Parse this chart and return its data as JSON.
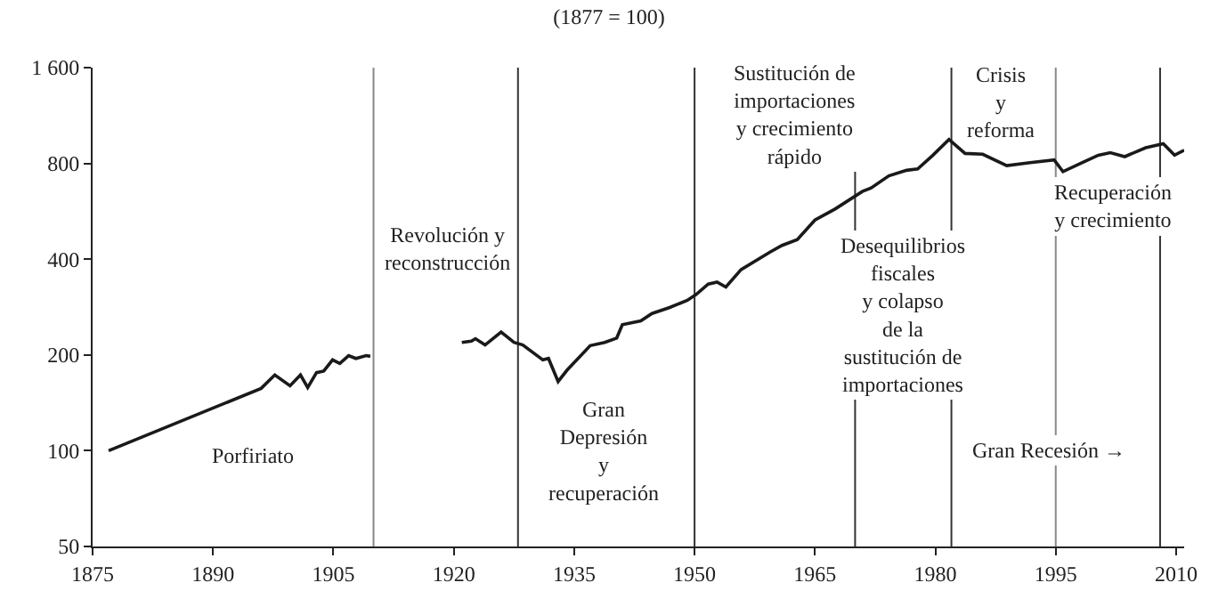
{
  "chart_data": {
    "type": "line",
    "title": "(1877 = 100)",
    "log": true,
    "grid": false,
    "marker": "none",
    "line_style": "solid",
    "xlim": [
      1875,
      2011
    ],
    "xticks": [
      1875,
      1890,
      1905,
      1920,
      1935,
      1950,
      1965,
      1980,
      1995,
      2010
    ],
    "ylim": [
      50,
      1600
    ],
    "yticks": [
      50,
      100,
      200,
      400,
      800,
      {
        "value": 1600,
        "label": "1 600"
      }
    ],
    "series": [
      {
        "color": "#1a1a1a",
        "x": [
          1877,
          1896,
          1897.7,
          1899.6,
          1900.9,
          1901.8,
          1902.9,
          1903.8,
          1904.9,
          1905.8,
          1906.9,
          1907.8,
          1909.1,
          1909.6,
          1915,
          1921,
          1922.2,
          1922.7,
          1923.9,
          1925.9,
          1927.5,
          1928.6,
          1931.1,
          1931.8,
          1933,
          1934.1,
          1937,
          1938.8,
          1940.3,
          1941,
          1943.3,
          1944.7,
          1946.9,
          1949.1,
          1950.2,
          1951.7,
          1952.8,
          1953.9,
          1955.8,
          1959.4,
          1960.9,
          1962.8,
          1965,
          1967.5,
          1970.9,
          1972,
          1974.2,
          1976.4,
          1977.8,
          1979.7,
          1981.7,
          1983.7,
          1985.9,
          1988.9,
          1991.8,
          1994.8,
          1995.9,
          1998.5,
          2000.3,
          2001.8,
          2003.6,
          2006.2,
          2008.4,
          2009.8,
          2011
        ],
        "values": [
          100,
          157,
          173,
          160,
          173,
          158,
          176,
          178,
          193,
          188,
          199,
          195,
          199,
          198,
          null,
          219,
          221,
          225,
          215,
          236,
          219,
          215,
          193,
          195,
          165,
          179,
          214,
          219,
          226,
          249,
          256,
          270,
          282,
          297,
          310,
          334,
          339,
          327,
          371,
          421,
          442,
          461,
          531,
          575,
          653,
          670,
          731,
          761,
          769,
          849,
          951,
          860,
          855,
          787,
          804,
          820,
          754,
          809,
          849,
          865,
          840,
          896,
          922,
          849,
          880
        ]
      }
    ],
    "ref_lines": [
      {
        "axis": "x",
        "value": 1910,
        "color": "#888888"
      },
      {
        "axis": "x",
        "value": 1928,
        "color": "#333333"
      },
      {
        "axis": "x",
        "value": 1950,
        "color": "#333333"
      },
      {
        "axis": "x",
        "value": 1970,
        "color": "#333333"
      },
      {
        "axis": "x",
        "value": 1982,
        "color": "#333333"
      },
      {
        "axis": "x",
        "value": 1995,
        "color": "#888888"
      },
      {
        "axis": "x",
        "value": 2008,
        "color": "#333333"
      }
    ],
    "annotations": [
      "Porfiriato",
      "Revolución y\nreconstrucción",
      "Gran\nDepresión\ny\nrecuperación",
      "Sustitución de\nimportaciones\ny crecimiento\nrápido",
      "Desequilibrios\nfiscales\ny colapso\nde la\nsustitución de\nimportaciones",
      "Crisis\ny\nreforma",
      "Recuperación\ny crecimiento",
      {
        "text": "Gran Recesión →",
        "x": 1994.2,
        "y": 100
      }
    ]
  }
}
